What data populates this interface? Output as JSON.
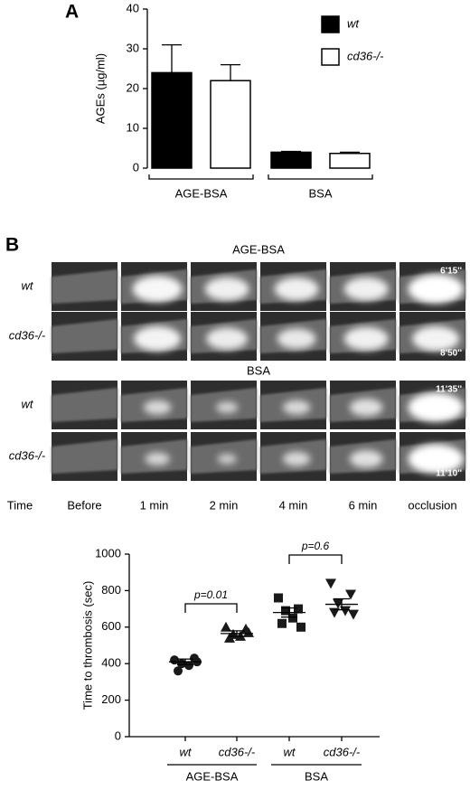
{
  "panel_labels": [
    "A",
    "B"
  ],
  "image_panel": {
    "conditions": [
      {
        "title": "AGE-BSA",
        "rows": [
          {
            "label": "wt",
            "timestamp": "6'15''"
          },
          {
            "label": "cd36-/-",
            "timestamp": "8'50''"
          }
        ]
      },
      {
        "title": "BSA",
        "rows": [
          {
            "label": "wt",
            "timestamp": "11'35''"
          },
          {
            "label": "cd36-/-",
            "timestamp": "11'10''"
          }
        ]
      }
    ],
    "time_label": "Time",
    "columns": [
      "Before",
      "1 min",
      "2 min",
      "4 min",
      "6 min",
      "occlusion"
    ]
  },
  "chart_data": [
    {
      "type": "bar",
      "y_label": "AGEs (µg/ml)",
      "categories": [
        "AGE-BSA",
        "BSA"
      ],
      "series": [
        {
          "name": "wt",
          "color": "#000000",
          "values": [
            24,
            4
          ],
          "errors": [
            7,
            0.2
          ]
        },
        {
          "name": "cd36-/-",
          "color": "#ffffff",
          "values": [
            22,
            3.7
          ],
          "errors": [
            4,
            0.3
          ]
        }
      ],
      "ylim": [
        0,
        40
      ],
      "yticks": [
        0,
        10,
        20,
        30,
        40
      ]
    },
    {
      "type": "dot",
      "y_label": "Time to thrombosis (sec)",
      "categories": [
        "wt",
        "cd36-/-",
        "wt",
        "cd36-/-"
      ],
      "groups": [
        "AGE-BSA",
        "BSA"
      ],
      "markers": [
        "circle",
        "triangle",
        "square",
        "triangle-down"
      ],
      "points": [
        [
          420,
          430,
          400,
          390,
          360,
          410
        ],
        [
          600,
          590,
          560,
          550,
          540,
          570
        ],
        [
          760,
          700,
          690,
          650,
          620,
          600
        ],
        [
          840,
          780,
          730,
          690,
          680,
          670
        ]
      ],
      "means": [
        410,
        565,
        680,
        725
      ],
      "sems": [
        15,
        15,
        25,
        30
      ],
      "annotations": [
        "p=0.01",
        "p=0.6"
      ],
      "ylim": [
        0,
        1000
      ],
      "yticks": [
        0,
        200,
        400,
        600,
        800,
        1000
      ]
    }
  ]
}
